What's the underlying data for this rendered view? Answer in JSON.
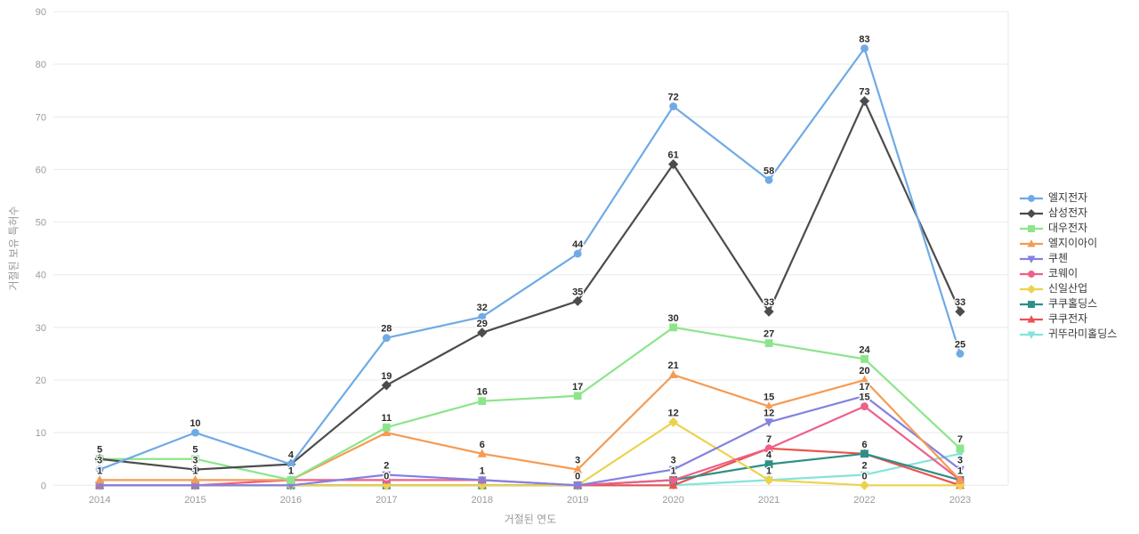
{
  "chart_data": {
    "type": "line",
    "title": "",
    "xlabel": "거절된 연도",
    "ylabel": "거절된 보유 특허수",
    "categories": [
      "2014",
      "2015",
      "2016",
      "2017",
      "2018",
      "2019",
      "2020",
      "2021",
      "2022",
      "2023"
    ],
    "ylim": [
      0,
      90
    ],
    "ytick_step": 10,
    "grid": "horizontal",
    "legend_position": "right",
    "series": [
      {
        "name": "엘지전자",
        "color": "#6faae6",
        "marker": "circle",
        "values": [
          3,
          10,
          4,
          28,
          32,
          44,
          72,
          58,
          83,
          25
        ]
      },
      {
        "name": "삼성전자",
        "color": "#4c4c4c",
        "marker": "diamond",
        "values": [
          5,
          3,
          4,
          19,
          29,
          35,
          61,
          33,
          73,
          33
        ]
      },
      {
        "name": "대우전자",
        "color": "#8de58b",
        "marker": "square",
        "values": [
          5,
          5,
          1,
          11,
          16,
          17,
          30,
          27,
          24,
          7
        ]
      },
      {
        "name": "엘지이아이",
        "color": "#f49b54",
        "marker": "triangle",
        "values": [
          1,
          1,
          1,
          10,
          6,
          3,
          21,
          15,
          20,
          1
        ]
      },
      {
        "name": "쿠첸",
        "color": "#8381e0",
        "marker": "triangle-down",
        "values": [
          0,
          0,
          0,
          2,
          1,
          0,
          3,
          12,
          17,
          3
        ]
      },
      {
        "name": "코웨이",
        "color": "#ee5f89",
        "marker": "circle",
        "values": [
          0,
          0,
          1,
          1,
          1,
          0,
          1,
          7,
          15,
          1
        ]
      },
      {
        "name": "신일산업",
        "color": "#ecd34f",
        "marker": "diamond",
        "values": [
          0,
          0,
          0,
          0,
          0,
          0,
          12,
          1,
          0,
          0
        ]
      },
      {
        "name": "쿠쿠홀딩스",
        "color": "#2f8f85",
        "marker": "square",
        "values": [
          0,
          0,
          0,
          0,
          0,
          0,
          1,
          4,
          6,
          1
        ]
      },
      {
        "name": "쿠쿠전자",
        "color": "#e95450",
        "marker": "triangle",
        "values": [
          0,
          0,
          0,
          0,
          0,
          0,
          0,
          7,
          6,
          0
        ]
      },
      {
        "name": "귀뚜라미홀딩스",
        "color": "#85e3dc",
        "marker": "triangle-down",
        "values": [
          0,
          0,
          0,
          0,
          0,
          0,
          0,
          1,
          2,
          6
        ]
      }
    ],
    "styles": {
      "grid_color": "#e9e9e9",
      "tick_color": "#9b9b9b",
      "label_color": "#2b2b2b"
    }
  }
}
